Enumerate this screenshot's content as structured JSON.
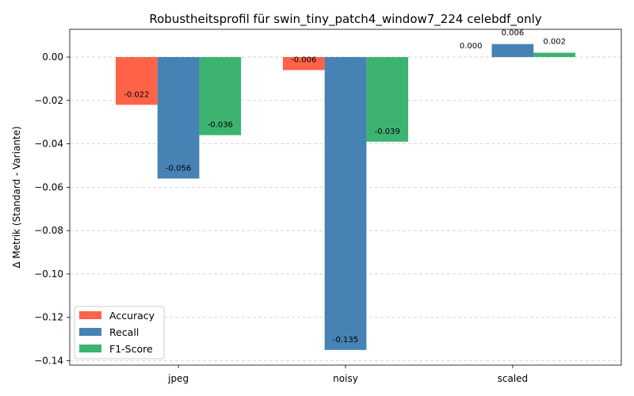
{
  "chart_data": {
    "type": "bar",
    "title": "Robustheitsprofil für swin_tiny_patch4_window7_224 celebdf_only",
    "xlabel": "",
    "ylabel": "Δ Metrik (Standard - Variante)",
    "categories": [
      "jpeg",
      "noisy",
      "scaled"
    ],
    "series": [
      {
        "name": "Accuracy",
        "color": "#ff6347",
        "values": [
          -0.022,
          -0.006,
          0.0
        ],
        "labels": [
          "-0.022",
          "-0.006",
          "0.000"
        ]
      },
      {
        "name": "Recall",
        "color": "#4682b4",
        "values": [
          -0.056,
          -0.135,
          0.006
        ],
        "labels": [
          "-0.056",
          "-0.135",
          "0.006"
        ]
      },
      {
        "name": "F1-Score",
        "color": "#3cb371",
        "values": [
          -0.036,
          -0.039,
          0.002
        ],
        "labels": [
          "-0.036",
          "-0.039",
          "0.002"
        ]
      }
    ],
    "ylim": [
      -0.142,
      0.0128
    ],
    "yticks": [
      0.0,
      -0.02,
      -0.04,
      -0.06,
      -0.08,
      -0.1,
      -0.12,
      -0.14
    ],
    "ytick_labels": [
      "0.00",
      "−0.02",
      "−0.04",
      "−0.06",
      "−0.08",
      "−0.10",
      "−0.12",
      "−0.14"
    ],
    "grid": true,
    "legend_position": "bottom-left"
  }
}
